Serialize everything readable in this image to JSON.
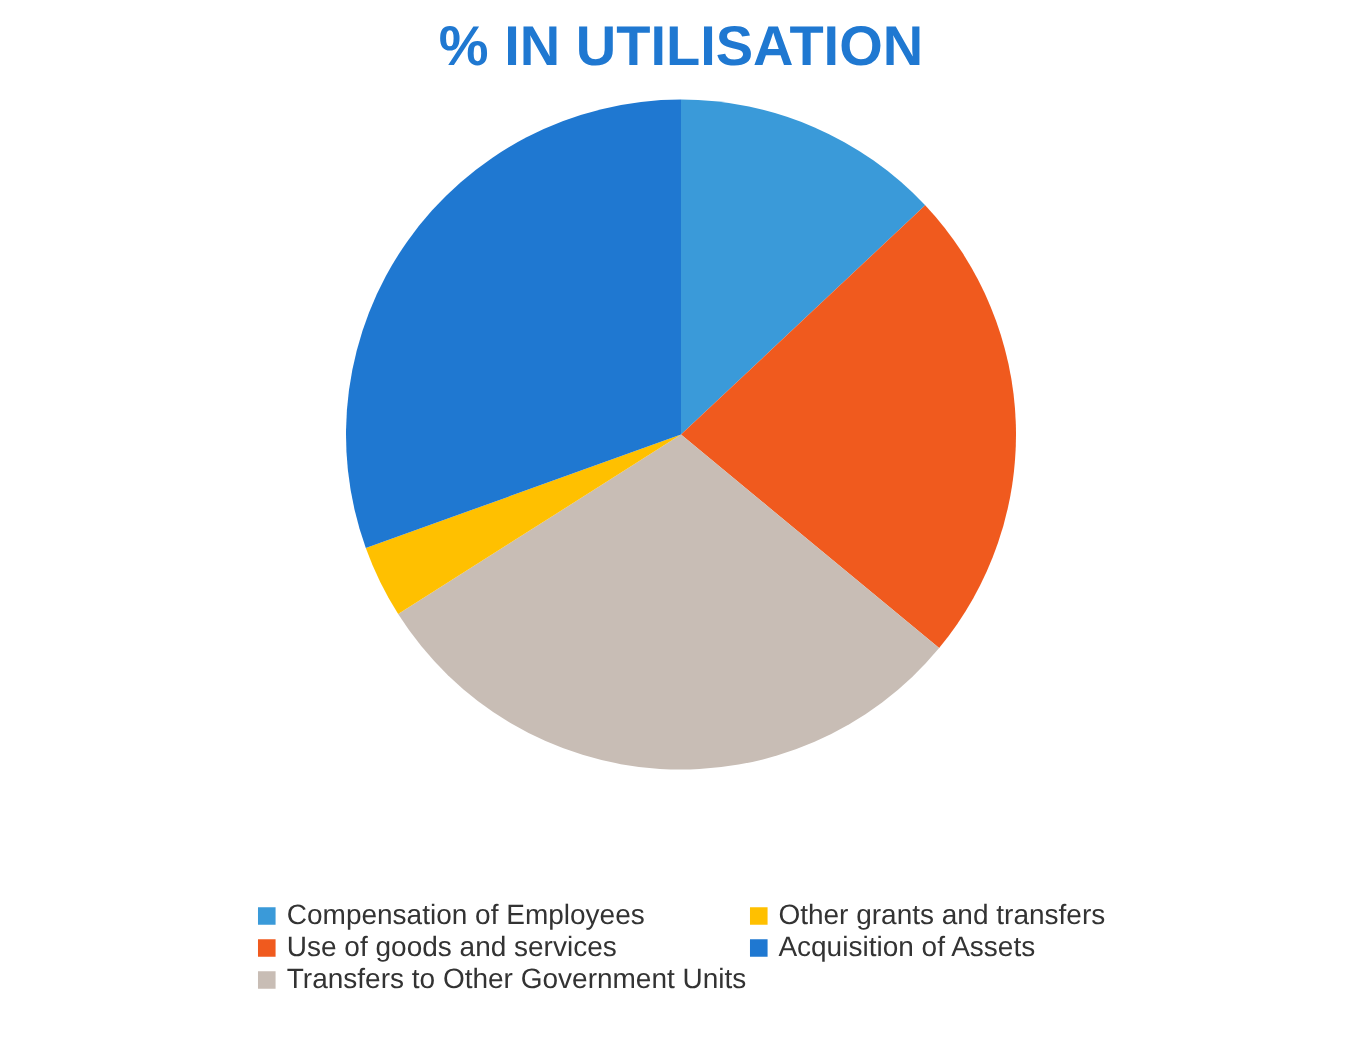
{
  "chart_data": {
    "type": "pie",
    "title": "% IN UTILISATION",
    "categories": [
      "Compensation of Employees",
      "Use of goods and services",
      "Transfers to Other Government Units",
      "Other grants and transfers",
      "Acquisition of Assets"
    ],
    "values": [
      13,
      23,
      30,
      3.5,
      30.5
    ],
    "colors": [
      "#3a9ad9",
      "#f05a1e",
      "#c8bdb5",
      "#ffc000",
      "#1f78d1"
    ],
    "legend": "bottom"
  }
}
